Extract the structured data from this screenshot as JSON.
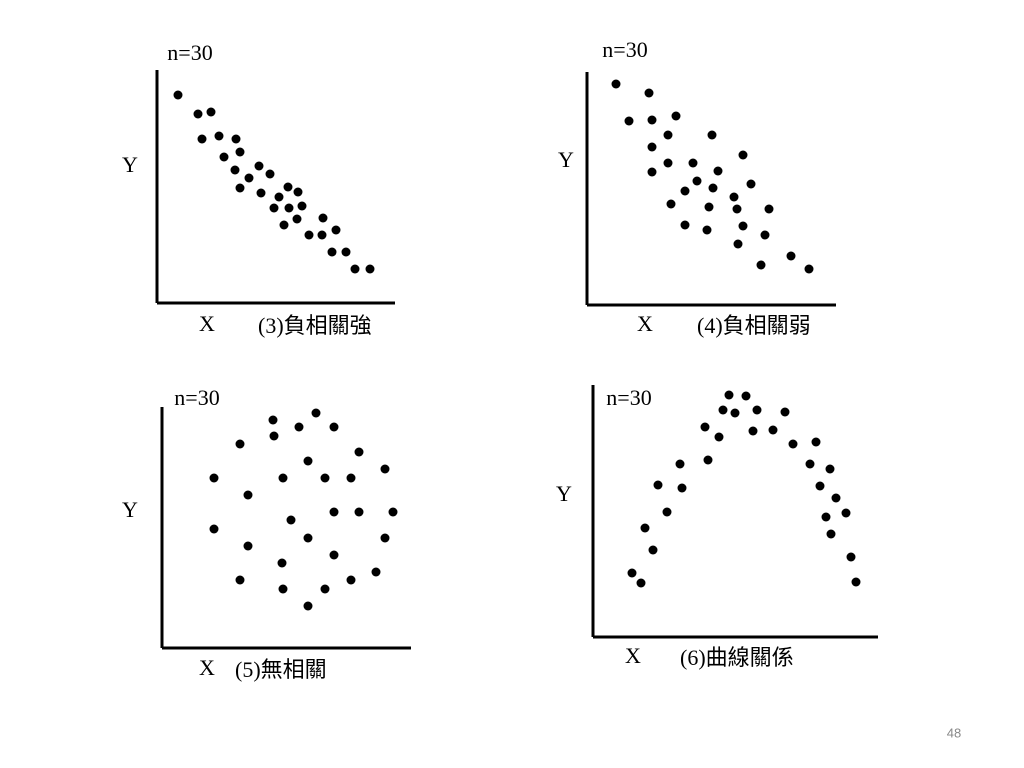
{
  "chart_data": [
    {
      "type": "scatter",
      "title": "n=30",
      "x_label": "X",
      "y_label": "Y",
      "caption": "(3)負相關強",
      "color": "#000000",
      "xlim": [
        0,
        240
      ],
      "ylim": [
        0,
        235
      ],
      "x": [
        21,
        41,
        54,
        45,
        62,
        79,
        67,
        83,
        78,
        92,
        102,
        83,
        104,
        113,
        122,
        131,
        141,
        117,
        132,
        145,
        127,
        140,
        166,
        152,
        165,
        179,
        175,
        189,
        198,
        213
      ],
      "y": [
        208,
        189,
        191,
        164,
        167,
        164,
        146,
        151,
        133,
        125,
        137,
        115,
        110,
        129,
        106,
        116,
        111,
        95,
        95,
        97,
        78,
        84,
        85,
        68,
        68,
        73,
        51,
        51,
        34,
        34
      ]
    },
    {
      "type": "scatter",
      "title": "n=30",
      "x_label": "X",
      "y_label": "Y",
      "caption": "(4)負相關弱",
      "color": "#000000",
      "xlim": [
        0,
        250
      ],
      "ylim": [
        0,
        235
      ],
      "x": [
        29,
        42,
        62,
        65,
        89,
        81,
        65,
        125,
        65,
        81,
        106,
        156,
        98,
        110,
        126,
        131,
        164,
        84,
        122,
        147,
        150,
        182,
        98,
        120,
        156,
        178,
        151,
        174,
        204,
        222
      ],
      "y": [
        221,
        184,
        212,
        185,
        189,
        170,
        158,
        170,
        133,
        142,
        142,
        150,
        114,
        124,
        117,
        134,
        121,
        101,
        98,
        108,
        96,
        96,
        80,
        75,
        79,
        70,
        61,
        40,
        49,
        36
      ]
    },
    {
      "type": "scatter",
      "title": "n=30",
      "x_label": "X",
      "y_label": "Y",
      "caption": "(5)無相關",
      "color": "#000000",
      "xlim": [
        0,
        250
      ],
      "ylim": [
        0,
        240
      ],
      "x": [
        111,
        154,
        137,
        172,
        112,
        78,
        197,
        146,
        223,
        52,
        121,
        163,
        189,
        86,
        172,
        197,
        231,
        129,
        52,
        146,
        223,
        86,
        172,
        120,
        214,
        78,
        189,
        121,
        163,
        146
      ],
      "y": [
        228,
        235,
        221,
        221,
        212,
        204,
        196,
        187,
        179,
        170,
        170,
        170,
        170,
        153,
        136,
        136,
        136,
        128,
        119,
        110,
        110,
        102,
        93,
        85,
        76,
        68,
        68,
        59,
        59,
        42
      ]
    },
    {
      "type": "scatter",
      "title": "n=30",
      "x_label": "X",
      "y_label": "Y",
      "caption": "(6)曲線關係",
      "color": "#000000",
      "xlim": [
        0,
        285
      ],
      "ylim": [
        0,
        252
      ],
      "x": [
        136,
        153,
        130,
        142,
        164,
        192,
        112,
        160,
        180,
        126,
        200,
        223,
        115,
        87,
        217,
        237,
        65,
        89,
        227,
        243,
        74,
        233,
        253,
        52,
        238,
        60,
        39,
        258,
        48,
        263
      ],
      "y": [
        242,
        241,
        227,
        224,
        227,
        225,
        210,
        206,
        207,
        200,
        193,
        195,
        177,
        173,
        173,
        168,
        152,
        149,
        151,
        139,
        125,
        120,
        124,
        109,
        103,
        87,
        64,
        80,
        54,
        55
      ]
    }
  ],
  "page_number": "48"
}
